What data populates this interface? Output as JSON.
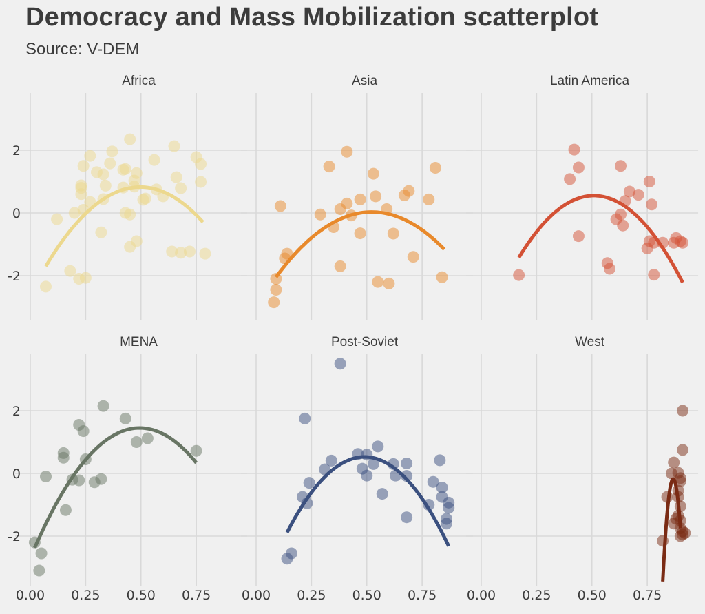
{
  "title": "Democracy and Mass Mobilization scatterplot",
  "subtitle": "Source: V-DEM",
  "chart_data": {
    "type": "scatter",
    "facet_layout": "2 rows x 3 columns",
    "title": "Democracy and Mass Mobilization scatterplot",
    "subtitle": "Source: V-DEM",
    "xlabel": "",
    "ylabel": "",
    "x_ticks": [
      "0.00",
      "0.25",
      "0.50",
      "0.75"
    ],
    "y_ticks": [
      "-2",
      "0",
      "2"
    ],
    "xlim": [
      -0.02,
      0.95
    ],
    "ylim": [
      -3.3,
      3.8
    ],
    "grid": true,
    "legend": "none",
    "fit": "quadratic smoother per panel",
    "panels": [
      {
        "name": "Africa",
        "color": "#ecd88e",
        "points": [
          [
            0.07,
            -2.35
          ],
          [
            0.18,
            -1.85
          ],
          [
            0.22,
            -2.1
          ],
          [
            0.25,
            -2.07
          ],
          [
            0.12,
            -0.2
          ],
          [
            0.2,
            0.0
          ],
          [
            0.24,
            0.1
          ],
          [
            0.27,
            0.35
          ],
          [
            0.23,
            0.6
          ],
          [
            0.23,
            0.8
          ],
          [
            0.23,
            0.88
          ],
          [
            0.24,
            1.5
          ],
          [
            0.27,
            1.82
          ],
          [
            0.3,
            1.3
          ],
          [
            0.33,
            1.23
          ],
          [
            0.34,
            0.87
          ],
          [
            0.33,
            0.44
          ],
          [
            0.32,
            -0.62
          ],
          [
            0.36,
            1.58
          ],
          [
            0.37,
            1.96
          ],
          [
            0.45,
            2.35
          ],
          [
            0.42,
            1.38
          ],
          [
            0.43,
            1.4
          ],
          [
            0.48,
            1.27
          ],
          [
            0.47,
            1.03
          ],
          [
            0.42,
            0.81
          ],
          [
            0.47,
            0.84
          ],
          [
            0.43,
            0.0
          ],
          [
            0.45,
            -0.05
          ],
          [
            0.45,
            -1.08
          ],
          [
            0.48,
            -0.9
          ],
          [
            0.51,
            0.42
          ],
          [
            0.52,
            0.46
          ],
          [
            0.56,
            1.69
          ],
          [
            0.6,
            0.53
          ],
          [
            0.57,
            0.75
          ],
          [
            0.65,
            2.13
          ],
          [
            0.66,
            1.14
          ],
          [
            0.68,
            0.79
          ],
          [
            0.64,
            -1.23
          ],
          [
            0.68,
            -1.27
          ],
          [
            0.72,
            -1.23
          ],
          [
            0.75,
            1.78
          ],
          [
            0.77,
            1.56
          ],
          [
            0.77,
            0.99
          ],
          [
            0.79,
            -1.3
          ]
        ],
        "fit_x": [
          0.07,
          0.78
        ],
        "fit_coef": [
          -2.6,
          13.8,
          -13.9
        ]
      },
      {
        "name": "Asia",
        "color": "#e8892b",
        "points": [
          [
            0.08,
            -2.85
          ],
          [
            0.09,
            -2.45
          ],
          [
            0.09,
            -2.1
          ],
          [
            0.11,
            0.22
          ],
          [
            0.13,
            -1.45
          ],
          [
            0.14,
            -1.3
          ],
          [
            0.33,
            1.48
          ],
          [
            0.29,
            -0.05
          ],
          [
            0.41,
            1.95
          ],
          [
            0.35,
            -0.45
          ],
          [
            0.38,
            0.12
          ],
          [
            0.41,
            0.3
          ],
          [
            0.43,
            -0.08
          ],
          [
            0.47,
            0.43
          ],
          [
            0.47,
            -0.65
          ],
          [
            0.38,
            -1.7
          ],
          [
            0.53,
            1.25
          ],
          [
            0.54,
            0.53
          ],
          [
            0.55,
            -2.2
          ],
          [
            0.59,
            0.12
          ],
          [
            0.6,
            -2.25
          ],
          [
            0.62,
            -0.66
          ],
          [
            0.67,
            0.56
          ],
          [
            0.69,
            0.7
          ],
          [
            0.71,
            -1.4
          ],
          [
            0.78,
            0.43
          ],
          [
            0.81,
            1.44
          ],
          [
            0.84,
            -2.05
          ]
        ],
        "fit_x": [
          0.09,
          0.85
        ],
        "fit_coef": [
          -3.0,
          11.6,
          -11.1
        ]
      },
      {
        "name": "Latin America",
        "color": "#d35135",
        "points": [
          [
            0.17,
            -1.98
          ],
          [
            0.42,
            2.02
          ],
          [
            0.44,
            1.45
          ],
          [
            0.4,
            1.08
          ],
          [
            0.44,
            -0.74
          ],
          [
            0.63,
            1.5
          ],
          [
            0.67,
            0.68
          ],
          [
            0.71,
            0.58
          ],
          [
            0.65,
            0.38
          ],
          [
            0.61,
            -0.2
          ],
          [
            0.63,
            -0.05
          ],
          [
            0.64,
            -0.4
          ],
          [
            0.57,
            -1.6
          ],
          [
            0.58,
            -1.78
          ],
          [
            0.76,
            1.0
          ],
          [
            0.77,
            0.27
          ],
          [
            0.78,
            -1.97
          ],
          [
            0.76,
            -0.9
          ],
          [
            0.78,
            -0.95
          ],
          [
            0.82,
            -0.95
          ],
          [
            0.75,
            -1.13
          ],
          [
            0.87,
            -0.95
          ],
          [
            0.88,
            -0.8
          ],
          [
            0.9,
            -0.9
          ],
          [
            0.91,
            -0.95
          ]
        ],
        "fit_x": [
          0.17,
          0.91
        ],
        "fit_coef": [
          -3.9,
          17.5,
          -17.2
        ]
      },
      {
        "name": "MENA",
        "color": "#687564",
        "points": [
          [
            0.02,
            -2.2
          ],
          [
            0.05,
            -2.55
          ],
          [
            0.04,
            -3.1
          ],
          [
            0.07,
            -0.1
          ],
          [
            0.15,
            0.65
          ],
          [
            0.15,
            0.5
          ],
          [
            0.16,
            -1.17
          ],
          [
            0.19,
            -0.2
          ],
          [
            0.22,
            -0.22
          ],
          [
            0.22,
            1.55
          ],
          [
            0.24,
            1.35
          ],
          [
            0.25,
            0.45
          ],
          [
            0.29,
            -0.28
          ],
          [
            0.32,
            -0.18
          ],
          [
            0.33,
            2.15
          ],
          [
            0.43,
            1.75
          ],
          [
            0.48,
            1.0
          ],
          [
            0.53,
            1.12
          ],
          [
            0.75,
            0.72
          ]
        ],
        "fit_x": [
          0.02,
          0.75
        ],
        "fit_coef": [
          -2.7,
          16.8,
          -17.0
        ]
      },
      {
        "name": "Post-Soviet",
        "color": "#3b507f",
        "points": [
          [
            0.14,
            -2.72
          ],
          [
            0.16,
            -2.55
          ],
          [
            0.21,
            -0.75
          ],
          [
            0.23,
            -0.95
          ],
          [
            0.24,
            -0.3
          ],
          [
            0.22,
            1.75
          ],
          [
            0.38,
            3.5
          ],
          [
            0.31,
            0.13
          ],
          [
            0.34,
            0.41
          ],
          [
            0.46,
            0.62
          ],
          [
            0.5,
            0.6
          ],
          [
            0.55,
            0.86
          ],
          [
            0.48,
            0.15
          ],
          [
            0.5,
            -0.07
          ],
          [
            0.53,
            0.3
          ],
          [
            0.57,
            -0.65
          ],
          [
            0.62,
            0.3
          ],
          [
            0.63,
            -0.07
          ],
          [
            0.68,
            0.32
          ],
          [
            0.68,
            -0.08
          ],
          [
            0.68,
            -1.4
          ],
          [
            0.8,
            -0.27
          ],
          [
            0.83,
            0.42
          ],
          [
            0.84,
            -0.45
          ],
          [
            0.78,
            -1.0
          ],
          [
            0.84,
            -0.75
          ],
          [
            0.87,
            -0.93
          ],
          [
            0.87,
            -1.1
          ],
          [
            0.86,
            -1.45
          ],
          [
            0.86,
            -1.6
          ]
        ],
        "fit_x": [
          0.14,
          0.87
        ],
        "fit_coef": [
          -4.2,
          19.3,
          -19.7
        ]
      },
      {
        "name": "West",
        "color": "#7a2b14",
        "points": [
          [
            0.91,
            2.0
          ],
          [
            0.91,
            0.75
          ],
          [
            0.87,
            0.35
          ],
          [
            0.86,
            0.0
          ],
          [
            0.89,
            0.02
          ],
          [
            0.9,
            -0.15
          ],
          [
            0.9,
            -0.25
          ],
          [
            0.89,
            -0.55
          ],
          [
            0.89,
            -0.75
          ],
          [
            0.84,
            -0.75
          ],
          [
            0.9,
            -1.05
          ],
          [
            0.89,
            -1.35
          ],
          [
            0.88,
            -1.45
          ],
          [
            0.9,
            -1.5
          ],
          [
            0.87,
            -1.6
          ],
          [
            0.9,
            -1.75
          ],
          [
            0.91,
            -1.85
          ],
          [
            0.92,
            -1.9
          ],
          [
            0.9,
            -2.0
          ],
          [
            0.91,
            -1.95
          ],
          [
            0.82,
            -2.15
          ]
        ],
        "fit_x": [
          0.82,
          0.9
        ],
        "fit_coef": [
          -1102.0,
          2541.0,
          -1465.0
        ]
      }
    ]
  }
}
